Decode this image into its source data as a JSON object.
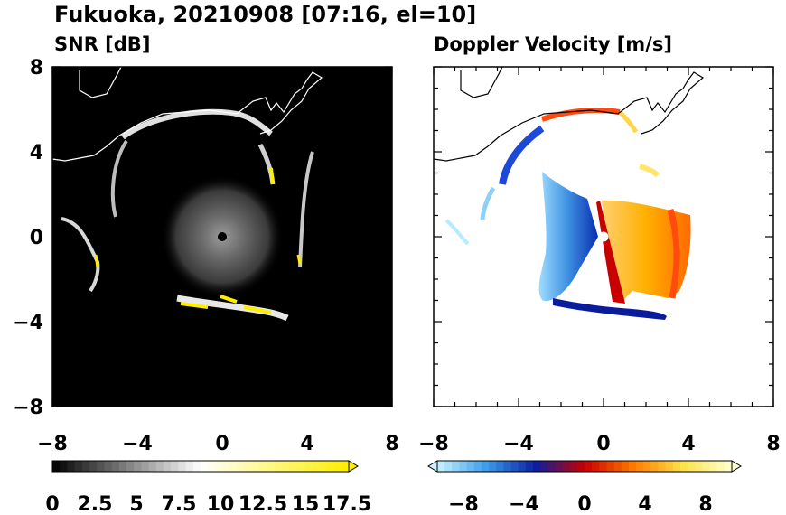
{
  "title": "Fukuoka, 20210908 [07:16, el=10]",
  "chart_data": [
    {
      "type": "heatmap",
      "title": "SNR [dB]",
      "xlim": [
        -8,
        8
      ],
      "ylim": [
        -8,
        8
      ],
      "xticks": [
        "−8",
        "−4",
        "0",
        "4",
        "8"
      ],
      "yticks": [
        "8",
        "4",
        "0",
        "−4",
        "−8"
      ],
      "colorbar": {
        "min": 0,
        "max": 18,
        "extend": "max",
        "tick_labels": [
          "0",
          "2.5",
          "5",
          "7.5",
          "10",
          "12.5",
          "15",
          "17.5"
        ],
        "colors": [
          "#000000",
          "#ffffff",
          "#ffee00"
        ]
      },
      "background": "#000000",
      "radar_site": [
        0,
        0
      ]
    },
    {
      "type": "heatmap",
      "title": "Doppler Velocity [m/s]",
      "xlim": [
        -8,
        8
      ],
      "ylim": [
        -8,
        8
      ],
      "xticks": [
        "−8",
        "−4",
        "0",
        "4",
        "8"
      ],
      "yticks": [
        "8",
        "4",
        "0",
        "−4",
        "−8"
      ],
      "colorbar": {
        "min": -10,
        "max": 10,
        "extend": "both",
        "tick_labels": [
          "−8",
          "−4",
          "0",
          "4",
          "8"
        ],
        "colors": [
          "#c8f4ff",
          "#3c9be8",
          "#0a1fa0",
          "#c80000",
          "#ff7a00",
          "#ffe24a",
          "#ffffd4"
        ]
      },
      "background": "#ffffff",
      "radar_site": [
        0,
        0
      ]
    }
  ]
}
